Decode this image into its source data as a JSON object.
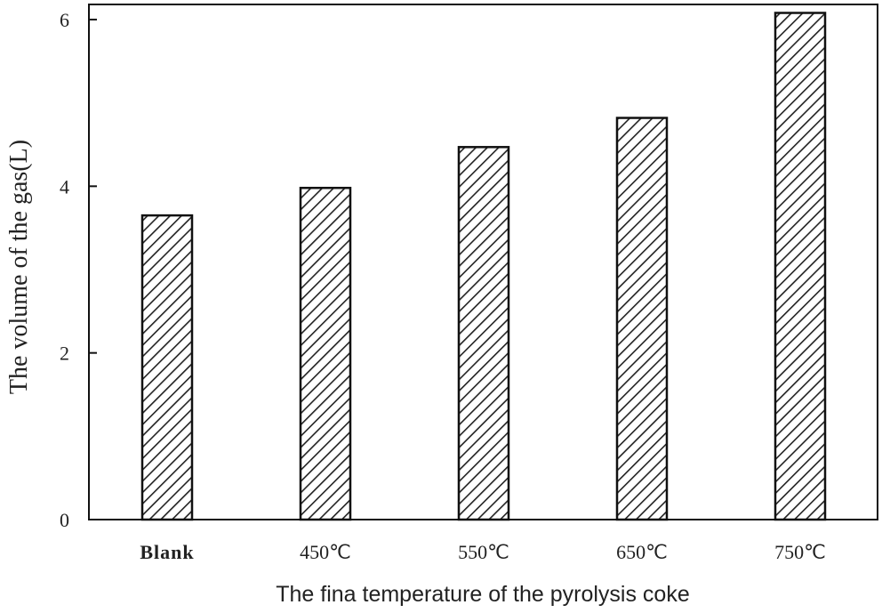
{
  "chart_data": {
    "type": "bar",
    "categories": [
      "Blank",
      "450℃",
      "550℃",
      "650℃",
      "750℃"
    ],
    "values": [
      3.65,
      3.98,
      4.47,
      4.82,
      6.08
    ],
    "xlabel": "The fina temperature of the pyrolysis coke",
    "ylabel": "The volume of the gas(L)",
    "ylim": [
      0,
      6
    ],
    "yticks": [
      0,
      2,
      4,
      6
    ],
    "grid": false,
    "legend": "none",
    "bar_fill": "diagonal-hatch",
    "colors": {
      "bar_edge": "#111111",
      "hatch": "#222222",
      "frame": "#111111"
    }
  }
}
